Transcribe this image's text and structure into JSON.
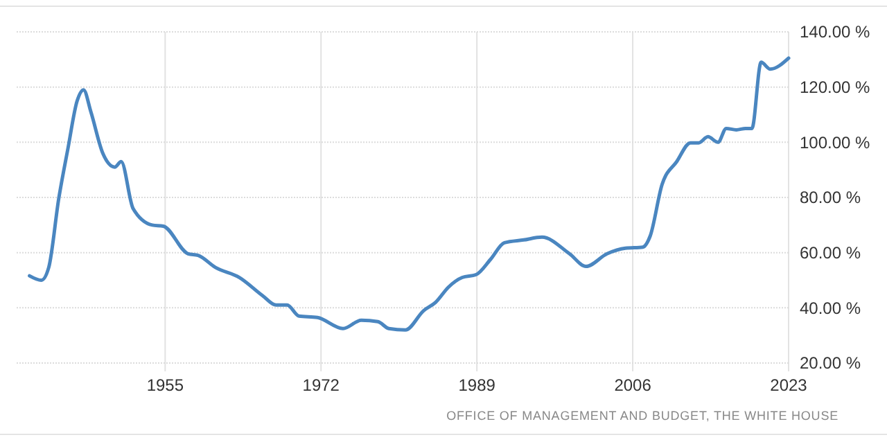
{
  "chart_data": {
    "type": "line",
    "x": [
      1940.2,
      1941.5,
      1942.3,
      1943.4,
      1944.4,
      1945.4,
      1946.1,
      1946.9,
      1948.2,
      1949.5,
      1950.2,
      1951.5,
      1953.6,
      1954.8,
      1957.5,
      1958.6,
      1960.5,
      1963.1,
      1965.6,
      1967.1,
      1968.3,
      1969.6,
      1971.6,
      1974.4,
      1976.4,
      1978.2,
      1979.4,
      1981.2,
      1983.2,
      1984.5,
      1985.9,
      1987.4,
      1988.9,
      1990.5,
      1992,
      1994.1,
      1996.1,
      1999.1,
      2000.9,
      2003.2,
      2005.2,
      2007.1,
      2007.9,
      2009.2,
      2010.8,
      2012.3,
      2013.2,
      2014.2,
      2015.3,
      2016.2,
      2017.3,
      2018.3,
      2019,
      2020,
      2021,
      2023
    ],
    "series": [
      {
        "color": "#4a86c0",
        "values": [
          51.6,
          50,
          54.6,
          79.7,
          97.8,
          115,
          119,
          111,
          96,
          91,
          93,
          76,
          70,
          69.6,
          59.6,
          59,
          54.6,
          51,
          44.5,
          41,
          41,
          37,
          36.5,
          32.5,
          35.5,
          35,
          32.5,
          32,
          39,
          42,
          47.5,
          51,
          52,
          57.6,
          63.6,
          64.6,
          65.6,
          59.6,
          55,
          59.6,
          61.6,
          62,
          66,
          84.7,
          93,
          99.8,
          99.8,
          102,
          100,
          105,
          104.5,
          105,
          105,
          129,
          126.5,
          130.5
        ]
      }
    ],
    "xlim": [
      1938.8,
      2023
    ],
    "xticks": [
      1955,
      1972,
      1989,
      2006,
      2023
    ],
    "ylim": [
      20,
      140
    ],
    "yticks": [
      {
        "value": 20,
        "label": "20.00 %"
      },
      {
        "value": 40,
        "label": "40.00 %"
      },
      {
        "value": 60,
        "label": "60.00 %"
      },
      {
        "value": 80,
        "label": "80.00 %"
      },
      {
        "value": 100,
        "label": "100.00 %"
      },
      {
        "value": 120,
        "label": "120.00 %"
      },
      {
        "value": 140,
        "label": "140.00 %"
      }
    ],
    "grid": true,
    "annotations": [
      "OFFICE OF MANAGEMENT AND BUDGET, THE WHITE HOUSE"
    ]
  }
}
